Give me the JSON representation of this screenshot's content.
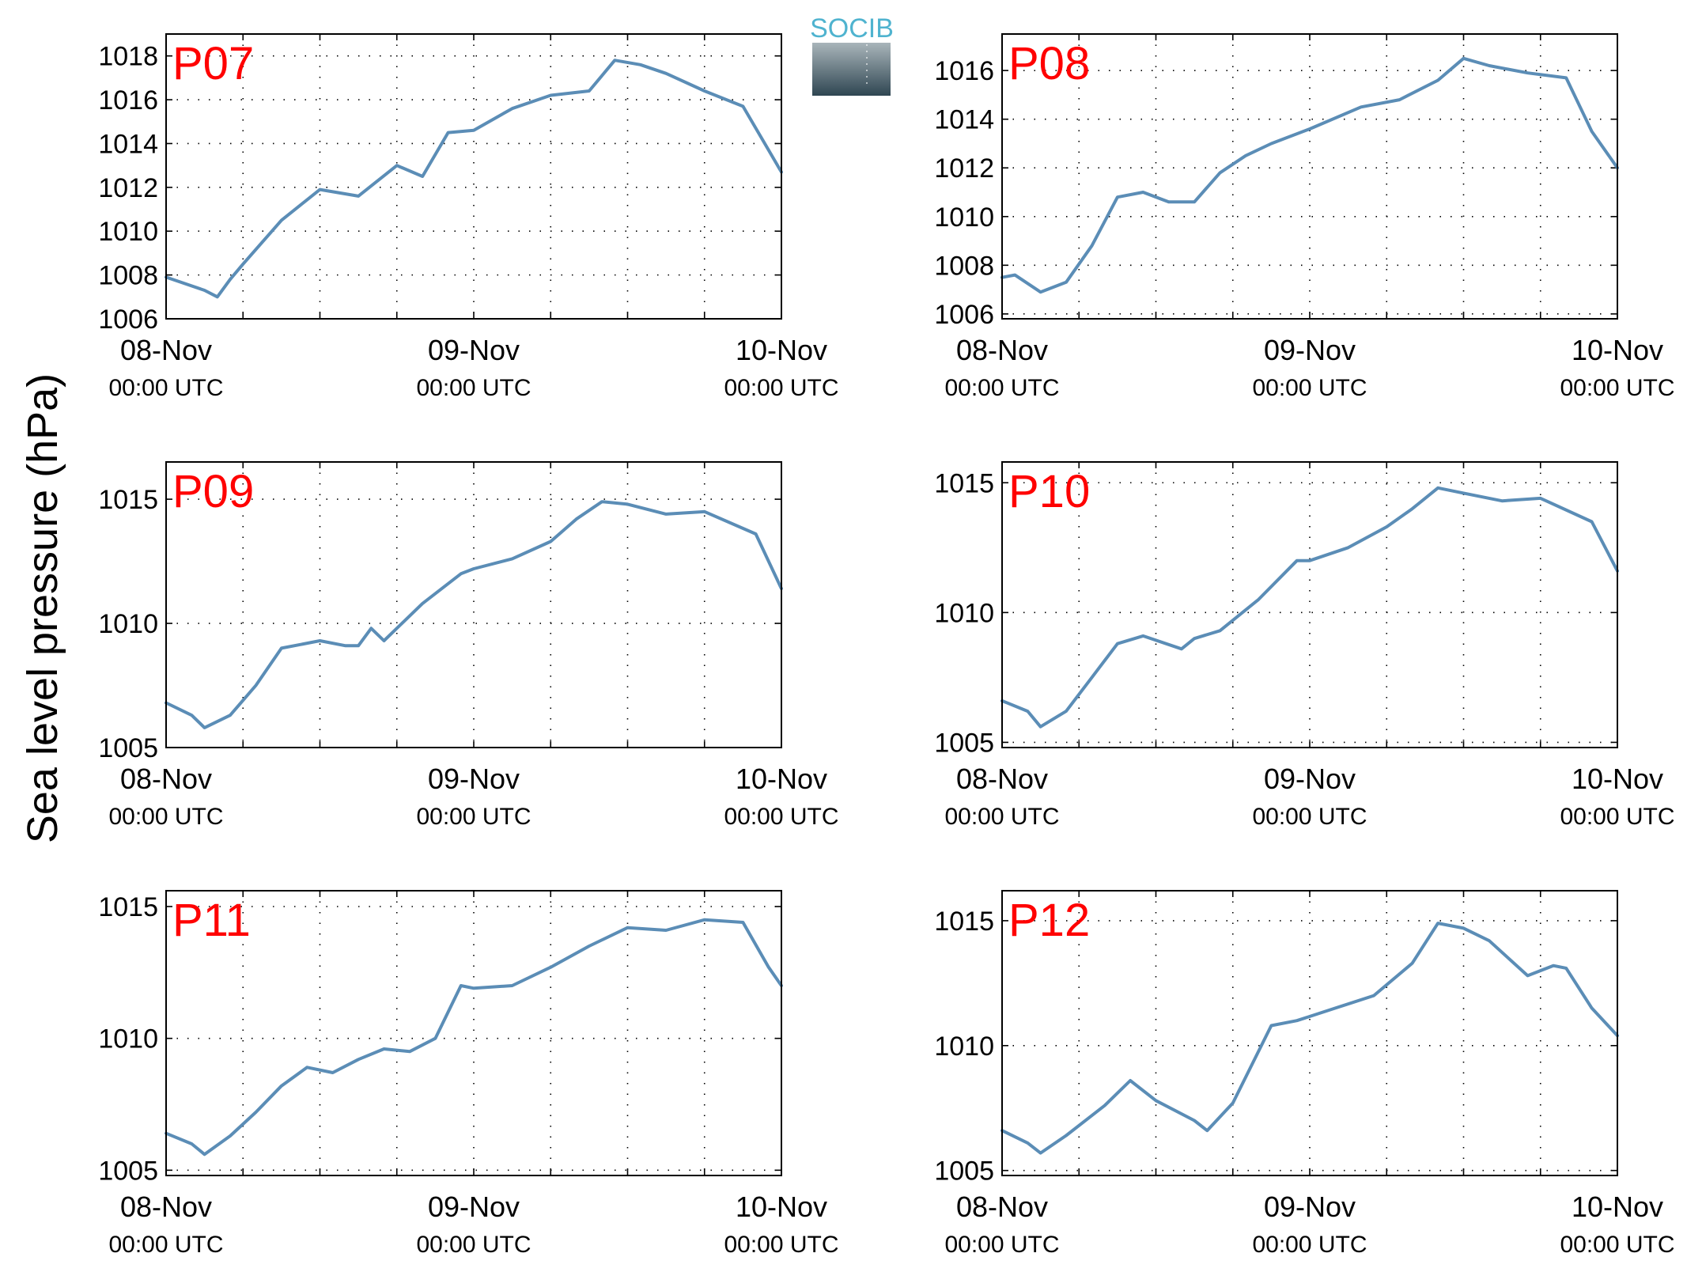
{
  "figure": {
    "ylabel": "Sea level pressure (hPa)",
    "logo": {
      "text": "SOCIB",
      "text_color": "#4fb3cf",
      "gradient_top": "#a9b5ba",
      "gradient_bottom": "#2f4652"
    },
    "line_color": "#5b8db6",
    "label_color": "#ff0000",
    "x_ticks": [
      {
        "date": "08-Nov",
        "time": "00:00 UTC"
      },
      {
        "date": "09-Nov",
        "time": "00:00 UTC"
      },
      {
        "date": "10-Nov",
        "time": "00:00 UTC"
      }
    ]
  },
  "chart_data": [
    {
      "type": "line",
      "title": "P07",
      "xlim": [
        "08-Nov 00:00",
        "10-Nov 00:00"
      ],
      "ylim": [
        1006,
        1019
      ],
      "yticks": [
        1006,
        1008,
        1010,
        1012,
        1014,
        1016,
        1018
      ],
      "grid": true,
      "legend": "none",
      "x": [
        "08-Nov 00:00",
        "08-Nov 03:00",
        "08-Nov 04:00",
        "08-Nov 05:00",
        "08-Nov 06:00",
        "08-Nov 09:00",
        "08-Nov 12:00",
        "08-Nov 15:00",
        "08-Nov 18:00",
        "08-Nov 20:00",
        "08-Nov 22:00",
        "09-Nov 00:00",
        "09-Nov 03:00",
        "09-Nov 06:00",
        "09-Nov 09:00",
        "09-Nov 11:00",
        "09-Nov 13:00",
        "09-Nov 15:00",
        "09-Nov 18:00",
        "09-Nov 21:00",
        "09-Nov 23:00",
        "10-Nov 00:00"
      ],
      "y": [
        1007.9,
        1007.3,
        1007.0,
        1007.8,
        1008.5,
        1010.5,
        1011.9,
        1011.6,
        1013.0,
        1012.5,
        1014.5,
        1014.6,
        1015.6,
        1016.2,
        1016.4,
        1017.8,
        1017.6,
        1017.2,
        1016.4,
        1015.7,
        1013.7,
        1012.7
      ]
    },
    {
      "type": "line",
      "title": "P08",
      "xlim": [
        "08-Nov 00:00",
        "10-Nov 00:00"
      ],
      "ylim": [
        1005.8,
        1017.5
      ],
      "yticks": [
        1006,
        1008,
        1010,
        1012,
        1014,
        1016
      ],
      "grid": true,
      "legend": "none",
      "x": [
        "08-Nov 00:00",
        "08-Nov 01:00",
        "08-Nov 03:00",
        "08-Nov 05:00",
        "08-Nov 07:00",
        "08-Nov 09:00",
        "08-Nov 11:00",
        "08-Nov 13:00",
        "08-Nov 15:00",
        "08-Nov 17:00",
        "08-Nov 19:00",
        "08-Nov 21:00",
        "09-Nov 00:00",
        "09-Nov 04:00",
        "09-Nov 07:00",
        "09-Nov 10:00",
        "09-Nov 12:00",
        "09-Nov 14:00",
        "09-Nov 17:00",
        "09-Nov 20:00",
        "09-Nov 22:00",
        "10-Nov 00:00"
      ],
      "y": [
        1007.5,
        1007.6,
        1006.9,
        1007.3,
        1008.8,
        1010.8,
        1011.0,
        1010.6,
        1010.6,
        1011.8,
        1012.5,
        1013.0,
        1013.6,
        1014.5,
        1014.8,
        1015.6,
        1016.5,
        1016.2,
        1015.9,
        1015.7,
        1013.5,
        1012.0
      ]
    },
    {
      "type": "line",
      "title": "P09",
      "xlim": [
        "08-Nov 00:00",
        "10-Nov 00:00"
      ],
      "ylim": [
        1005,
        1016.5
      ],
      "yticks": [
        1005,
        1010,
        1015
      ],
      "grid": true,
      "legend": "none",
      "x": [
        "08-Nov 00:00",
        "08-Nov 02:00",
        "08-Nov 03:00",
        "08-Nov 05:00",
        "08-Nov 07:00",
        "08-Nov 09:00",
        "08-Nov 12:00",
        "08-Nov 14:00",
        "08-Nov 15:00",
        "08-Nov 16:00",
        "08-Nov 17:00",
        "08-Nov 20:00",
        "08-Nov 23:00",
        "09-Nov 00:00",
        "09-Nov 03:00",
        "09-Nov 06:00",
        "09-Nov 08:00",
        "09-Nov 10:00",
        "09-Nov 12:00",
        "09-Nov 15:00",
        "09-Nov 18:00",
        "09-Nov 22:00",
        "10-Nov 00:00"
      ],
      "y": [
        1006.8,
        1006.3,
        1005.8,
        1006.3,
        1007.5,
        1009.0,
        1009.3,
        1009.1,
        1009.1,
        1009.8,
        1009.3,
        1010.8,
        1012.0,
        1012.2,
        1012.6,
        1013.3,
        1014.2,
        1014.9,
        1014.8,
        1014.4,
        1014.5,
        1013.6,
        1011.4
      ]
    },
    {
      "type": "line",
      "title": "P10",
      "xlim": [
        "08-Nov 00:00",
        "10-Nov 00:00"
      ],
      "ylim": [
        1004.8,
        1015.8
      ],
      "yticks": [
        1005,
        1010,
        1015
      ],
      "grid": true,
      "legend": "none",
      "x": [
        "08-Nov 00:00",
        "08-Nov 02:00",
        "08-Nov 03:00",
        "08-Nov 05:00",
        "08-Nov 07:00",
        "08-Nov 09:00",
        "08-Nov 11:00",
        "08-Nov 14:00",
        "08-Nov 15:00",
        "08-Nov 17:00",
        "08-Nov 20:00",
        "08-Nov 23:00",
        "09-Nov 00:00",
        "09-Nov 03:00",
        "09-Nov 06:00",
        "09-Nov 08:00",
        "09-Nov 10:00",
        "09-Nov 12:00",
        "09-Nov 15:00",
        "09-Nov 18:00",
        "09-Nov 22:00",
        "10-Nov 00:00"
      ],
      "y": [
        1006.6,
        1006.2,
        1005.6,
        1006.2,
        1007.5,
        1008.8,
        1009.1,
        1008.6,
        1009.0,
        1009.3,
        1010.5,
        1012.0,
        1012.0,
        1012.5,
        1013.3,
        1014.0,
        1014.8,
        1014.6,
        1014.3,
        1014.4,
        1013.5,
        1011.6
      ]
    },
    {
      "type": "line",
      "title": "P11",
      "xlim": [
        "08-Nov 00:00",
        "10-Nov 00:00"
      ],
      "ylim": [
        1004.8,
        1015.6
      ],
      "yticks": [
        1005,
        1010,
        1015
      ],
      "grid": true,
      "legend": "none",
      "x": [
        "08-Nov 00:00",
        "08-Nov 02:00",
        "08-Nov 03:00",
        "08-Nov 05:00",
        "08-Nov 07:00",
        "08-Nov 09:00",
        "08-Nov 11:00",
        "08-Nov 13:00",
        "08-Nov 15:00",
        "08-Nov 17:00",
        "08-Nov 19:00",
        "08-Nov 21:00",
        "08-Nov 23:00",
        "09-Nov 00:00",
        "09-Nov 03:00",
        "09-Nov 06:00",
        "09-Nov 09:00",
        "09-Nov 12:00",
        "09-Nov 15:00",
        "09-Nov 18:00",
        "09-Nov 21:00",
        "09-Nov 23:00",
        "10-Nov 00:00"
      ],
      "y": [
        1006.4,
        1006.0,
        1005.6,
        1006.3,
        1007.2,
        1008.2,
        1008.9,
        1008.7,
        1009.2,
        1009.6,
        1009.5,
        1010.0,
        1012.0,
        1011.9,
        1012.0,
        1012.7,
        1013.5,
        1014.2,
        1014.1,
        1014.5,
        1014.4,
        1012.7,
        1012.0
      ]
    },
    {
      "type": "line",
      "title": "P12",
      "xlim": [
        "08-Nov 00:00",
        "10-Nov 00:00"
      ],
      "ylim": [
        1004.8,
        1016.2
      ],
      "yticks": [
        1005,
        1010,
        1015
      ],
      "grid": true,
      "legend": "none",
      "x": [
        "08-Nov 00:00",
        "08-Nov 02:00",
        "08-Nov 03:00",
        "08-Nov 05:00",
        "08-Nov 07:00",
        "08-Nov 08:00",
        "08-Nov 10:00",
        "08-Nov 12:00",
        "08-Nov 15:00",
        "08-Nov 16:00",
        "08-Nov 18:00",
        "08-Nov 21:00",
        "08-Nov 23:00",
        "09-Nov 02:00",
        "09-Nov 05:00",
        "09-Nov 08:00",
        "09-Nov 10:00",
        "09-Nov 12:00",
        "09-Nov 14:00",
        "09-Nov 17:00",
        "09-Nov 19:00",
        "09-Nov 20:00",
        "09-Nov 22:00",
        "10-Nov 00:00"
      ],
      "y": [
        1006.6,
        1006.1,
        1005.7,
        1006.4,
        1007.2,
        1007.6,
        1008.6,
        1007.8,
        1007.0,
        1006.6,
        1007.7,
        1010.8,
        1011.0,
        1011.5,
        1012.0,
        1013.3,
        1014.9,
        1014.7,
        1014.2,
        1012.8,
        1013.2,
        1013.1,
        1011.5,
        1010.4
      ]
    }
  ]
}
